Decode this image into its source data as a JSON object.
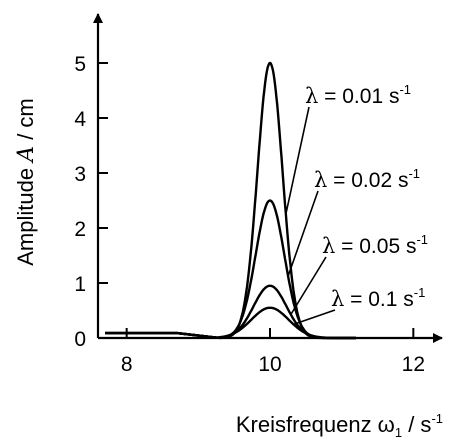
{
  "chart_data": {
    "type": "line",
    "xlabel_text": "Kreisfrequenz ω",
    "xlabel_sub": "1",
    "xlabel_unit": " / s",
    "xlabel_sup": "-1",
    "ylabel_pre": "Amplitude ",
    "ylabel_var": "A",
    "ylabel_unit": " / cm",
    "xlim": [
      7.6,
      12.4
    ],
    "ylim": [
      0,
      5.6
    ],
    "x_ticks": [
      8,
      10,
      12
    ],
    "y_ticks": [
      0,
      1,
      2,
      3,
      4,
      5
    ],
    "resonance_frequency": 10,
    "series": [
      {
        "label_sym": "λ",
        "label_text": " = 0.01 s",
        "label_sup": "-1",
        "lambda": 0.01,
        "peak": 5.0,
        "width": 0.175
      },
      {
        "label_sym": "λ",
        "label_text": " = 0.02 s",
        "label_sup": "-1",
        "lambda": 0.02,
        "peak": 2.5,
        "width": 0.2
      },
      {
        "label_sym": "λ",
        "label_text": " = 0.05 s",
        "label_sup": "-1",
        "lambda": 0.05,
        "peak": 0.95,
        "width": 0.23
      },
      {
        "label_sym": "λ",
        "label_text": " = 0.1 s",
        "label_sup": "-1",
        "lambda": 0.1,
        "peak": 0.55,
        "width": 0.26
      }
    ]
  }
}
